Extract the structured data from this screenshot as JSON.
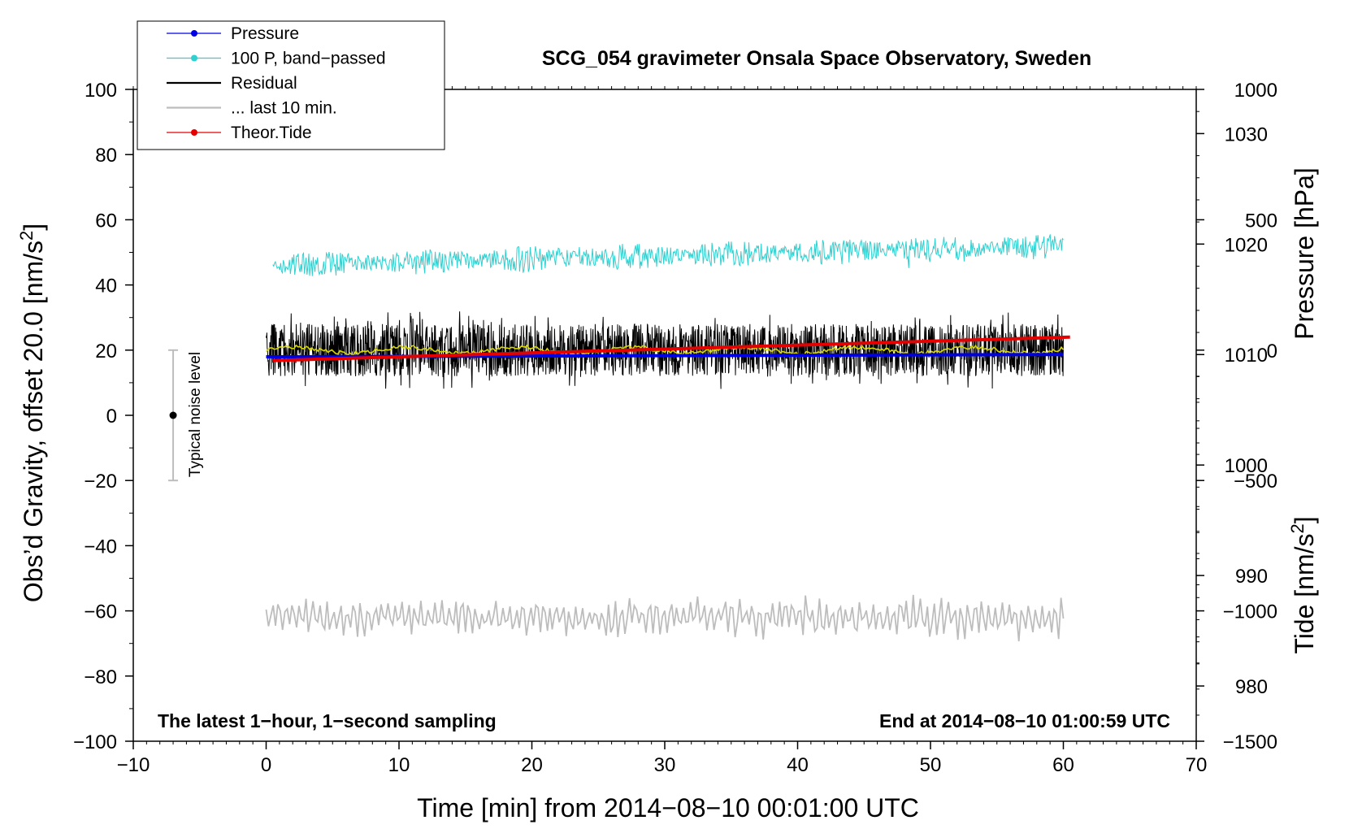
{
  "chart_data": {
    "type": "line",
    "title": "SCG_054 gravimeter Onsala Space Observatory, Sweden",
    "xlabel": "Time [min] from 2014−08−10 00:01:00 UTC",
    "ylabel_left_main": "Obs’d Gravity, offset 20.0 [nm/s",
    "ylabel_left_sup": "2",
    "ylabel_left_end": "]",
    "ylabel_right_pressure": "Pressure [hPa]",
    "ylabel_right_tide_main": "Tide [nm/s",
    "ylabel_right_tide_sup": "2",
    "ylabel_right_tide_end": "]",
    "xlim": [
      -10,
      70
    ],
    "ylim_left": [
      -100,
      100
    ],
    "ylim_pressure": [
      975,
      1034
    ],
    "ylim_tide": [
      -1500,
      1000
    ],
    "x_ticks": [
      -10,
      0,
      10,
      20,
      30,
      40,
      50,
      60,
      70
    ],
    "x_tick_labels": [
      "−10",
      "0",
      "10",
      "20",
      "30",
      "40",
      "50",
      "60",
      "70"
    ],
    "y_left_ticks": [
      -100,
      -80,
      -60,
      -40,
      -20,
      0,
      20,
      40,
      60,
      80,
      100
    ],
    "y_left_tick_labels": [
      "−100",
      "−80",
      "−60",
      "−40",
      "−20",
      "0",
      "20",
      "40",
      "60",
      "80",
      "100"
    ],
    "pressure_ticks": [
      980,
      990,
      1000,
      1010,
      1020,
      1030
    ],
    "pressure_tick_labels": [
      "980",
      "990",
      "1000",
      "1010",
      "1020",
      "1030"
    ],
    "tide_ticks": [
      -1500,
      -1000,
      -500,
      0,
      500,
      1000
    ],
    "tide_tick_labels": [
      "−1500",
      "−1000",
      "−500",
      "0",
      "500",
      "1000"
    ],
    "footnote_left": "The latest 1−hour, 1−second sampling",
    "footnote_right": "End at 2014−08−10 01:00:59 UTC",
    "noise_label": "Typical noise level",
    "noise_bar": {
      "x": -7.0,
      "center": 0,
      "low": -20,
      "high": 20
    },
    "legend": [
      {
        "label": "Pressure",
        "color": "#0000e6",
        "marker": true
      },
      {
        "label": "100 P, band−passed",
        "color": "#2fd0d0",
        "marker": true
      },
      {
        "label": "Residual",
        "color": "#000000",
        "marker": false
      },
      {
        "label": "... last 10 min.",
        "color": "#bdbdbd",
        "marker": false
      },
      {
        "label": "Theor.Tide",
        "color": "#e60000",
        "marker": true
      }
    ],
    "series": [
      {
        "name": "Pressure",
        "axis": "pressure",
        "x_range": [
          0,
          60
        ],
        "start": 1009.8,
        "end": 1010.0,
        "color": "#0000e6"
      },
      {
        "name": "100 P, band−passed",
        "axis": "left",
        "x_range": [
          0.5,
          60
        ],
        "start": 46,
        "end": 52,
        "noise_amplitude": 4,
        "color": "#2fd0d0"
      },
      {
        "name": "Residual",
        "axis": "left",
        "x_range": [
          0,
          60
        ],
        "mean": 20,
        "noise_amplitude": 8,
        "color": "#000000"
      },
      {
        "name": "Residual smoothed",
        "axis": "left",
        "x_range": [
          0,
          60
        ],
        "mean": 20,
        "color": "#d8d800"
      },
      {
        "name": "... last 10 min.",
        "axis": "left",
        "x_range": [
          0,
          60
        ],
        "mean": -62,
        "noise_amplitude": 6,
        "color": "#bdbdbd"
      },
      {
        "name": "Theor.Tide",
        "axis": "tide",
        "x_range": [
          0.5,
          60.5
        ],
        "start": -40,
        "end": 50,
        "color": "#e60000"
      }
    ]
  }
}
